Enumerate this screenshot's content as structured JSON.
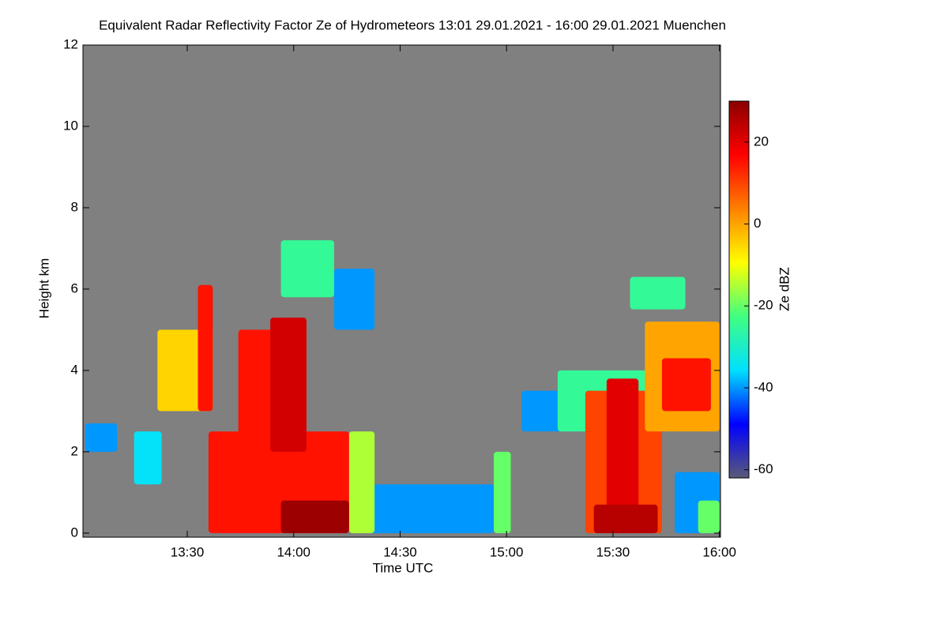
{
  "chart_data": {
    "type": "heatmap",
    "title": "Equivalent Radar Reflectivity Factor Ze of Hydrometeors   13:01 29.01.2021 - 16:00 29.01.2021 Muenchen",
    "xlabel": "Time UTC",
    "ylabel": "Height km",
    "colorbar_label": "Ze dBZ",
    "background": "#808080",
    "xlim": [
      13.01,
      16.005
    ],
    "ylim": [
      -0.1,
      12.0
    ],
    "zlim": [
      -62,
      30
    ],
    "xticks": [
      {
        "value": 13.5,
        "label": "13:30"
      },
      {
        "value": 14.0,
        "label": "14:00"
      },
      {
        "value": 14.5,
        "label": "14:30"
      },
      {
        "value": 15.0,
        "label": "15:00"
      },
      {
        "value": 15.5,
        "label": "15:30"
      },
      {
        "value": 16.0,
        "label": "16:00"
      }
    ],
    "yticks": [
      0,
      2,
      4,
      6,
      8,
      10,
      12
    ],
    "zticks": [
      20,
      0,
      -20,
      -40,
      -60
    ],
    "colormap": [
      "#5a5a78",
      "#0000ff",
      "#00e0ff",
      "#40ff80",
      "#ffff00",
      "#ff8000",
      "#ff0000",
      "#8b0000"
    ],
    "cells": [
      {
        "x": [
          13.02,
          13.17
        ],
        "y": [
          2.0,
          2.7
        ],
        "value": -40
      },
      {
        "x": [
          13.25,
          13.38
        ],
        "y": [
          1.2,
          2.5
        ],
        "value": -35
      },
      {
        "x": [
          13.36,
          13.62
        ],
        "y": [
          3.0,
          5.0
        ],
        "value": -5
      },
      {
        "x": [
          13.55,
          13.62
        ],
        "y": [
          3.0,
          6.1
        ],
        "value": 15
      },
      {
        "x": [
          14.19,
          14.38
        ],
        "y": [
          5.0,
          6.5
        ],
        "value": -40
      },
      {
        "x": [
          13.94,
          14.19
        ],
        "y": [
          5.8,
          7.2
        ],
        "value": -25
      },
      {
        "x": [
          14.34,
          14.94
        ],
        "y": [
          0.0,
          1.2
        ],
        "value": -40
      },
      {
        "x": [
          14.26,
          14.38
        ],
        "y": [
          0.0,
          2.5
        ],
        "value": -15
      },
      {
        "x": [
          13.6,
          14.26
        ],
        "y": [
          0.0,
          2.5
        ],
        "value": 15
      },
      {
        "x": [
          13.74,
          14.06
        ],
        "y": [
          2.0,
          5.0
        ],
        "value": 15
      },
      {
        "x": [
          13.89,
          14.06
        ],
        "y": [
          2.0,
          5.3
        ],
        "value": 22
      },
      {
        "x": [
          13.94,
          14.26
        ],
        "y": [
          0.0,
          0.8
        ],
        "value": 28
      },
      {
        "x": [
          14.94,
          15.02
        ],
        "y": [
          0.0,
          2.0
        ],
        "value": -20
      },
      {
        "x": [
          15.07,
          15.35
        ],
        "y": [
          2.5,
          3.5
        ],
        "value": -40
      },
      {
        "x": [
          15.24,
          15.73
        ],
        "y": [
          2.5,
          4.0
        ],
        "value": -25
      },
      {
        "x": [
          15.37,
          15.73
        ],
        "y": [
          0.0,
          3.5
        ],
        "value": 10
      },
      {
        "x": [
          15.47,
          15.62
        ],
        "y": [
          0.0,
          3.8
        ],
        "value": 20
      },
      {
        "x": [
          15.41,
          15.71
        ],
        "y": [
          0.0,
          0.7
        ],
        "value": 25
      },
      {
        "x": [
          15.58,
          15.84
        ],
        "y": [
          5.5,
          6.3
        ],
        "value": -25
      },
      {
        "x": [
          15.65,
          16.0
        ],
        "y": [
          2.5,
          5.2
        ],
        "value": 0
      },
      {
        "x": [
          15.73,
          15.96
        ],
        "y": [
          3.0,
          4.3
        ],
        "value": 15
      },
      {
        "x": [
          15.79,
          16.0
        ],
        "y": [
          0.0,
          1.5
        ],
        "value": -40
      },
      {
        "x": [
          15.9,
          16.0
        ],
        "y": [
          0.0,
          0.8
        ],
        "value": -20
      }
    ]
  }
}
